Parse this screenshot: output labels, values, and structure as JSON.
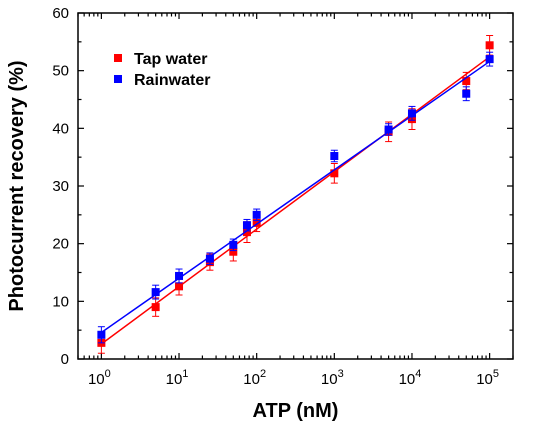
{
  "chart_data": {
    "type": "scatter",
    "title": "",
    "xlabel": "ATP (nM)",
    "ylabel": "Photocurrent recovery (%)",
    "xscale": "log",
    "xlim": [
      0.5,
      200000
    ],
    "ylim": [
      0,
      60
    ],
    "x_ticks": [
      {
        "value": 1,
        "base": "10",
        "exp": "0"
      },
      {
        "value": 10,
        "base": "10",
        "exp": "1"
      },
      {
        "value": 100,
        "base": "10",
        "exp": "2"
      },
      {
        "value": 1000,
        "base": "10",
        "exp": "3"
      },
      {
        "value": 10000,
        "base": "10",
        "exp": "4"
      },
      {
        "value": 100000,
        "base": "10",
        "exp": "5"
      }
    ],
    "y_ticks": [
      "0",
      "10",
      "20",
      "30",
      "40",
      "50",
      "60"
    ],
    "legend_position": "top-left",
    "grid": false,
    "series": [
      {
        "name": "Tap water",
        "color": "#ff0000",
        "marker": "square",
        "x": [
          1,
          5,
          10,
          25,
          50,
          75,
          100,
          1000,
          5000,
          10000,
          50000,
          100000
        ],
        "y": [
          2.8,
          9.0,
          12.6,
          16.8,
          18.6,
          22.0,
          23.6,
          32.2,
          39.4,
          41.6,
          48.2,
          54.4
        ],
        "error": [
          1.8,
          1.6,
          1.5,
          1.4,
          1.6,
          1.8,
          1.5,
          1.7,
          1.7,
          1.8,
          1.5,
          1.7
        ],
        "fit": [
          2.6,
          52.4
        ]
      },
      {
        "name": "Rainwater",
        "color": "#0000ff",
        "marker": "square",
        "x": [
          1,
          5,
          10,
          25,
          50,
          75,
          100,
          1000,
          5000,
          10000,
          50000,
          100000
        ],
        "y": [
          4.2,
          11.6,
          14.4,
          17.4,
          19.8,
          23.2,
          25.0,
          35.2,
          39.8,
          42.6,
          46.0,
          52.0
        ],
        "error": [
          1.4,
          1.2,
          1.2,
          1.0,
          1.0,
          1.0,
          1.0,
          1.0,
          1.0,
          1.2,
          1.2,
          1.2
        ],
        "fit": [
          4.6,
          51.6
        ]
      }
    ]
  }
}
